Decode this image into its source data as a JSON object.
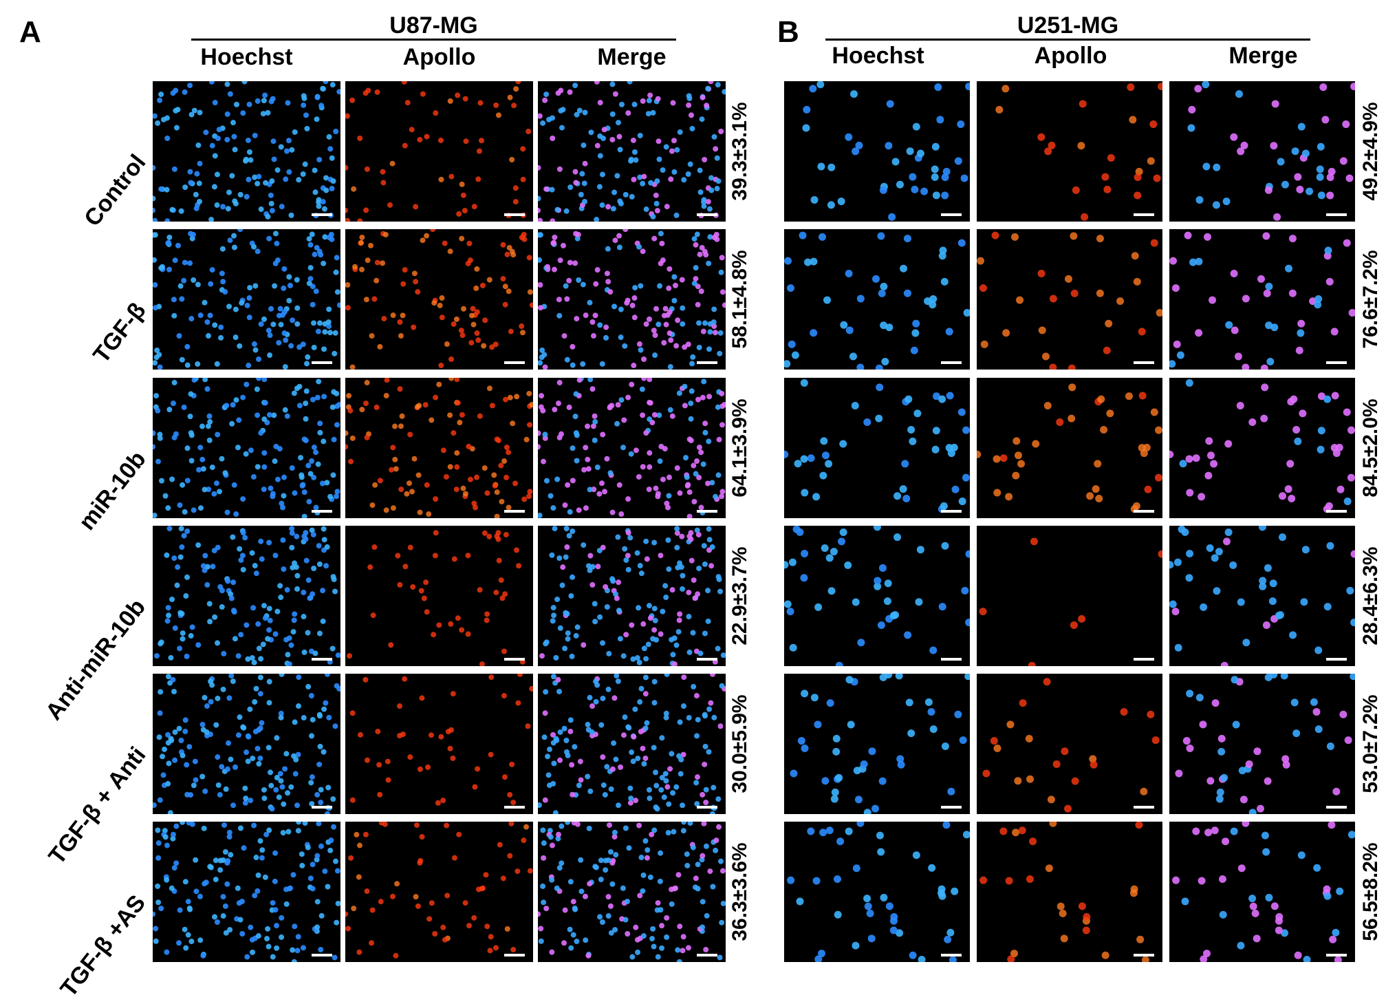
{
  "panel_a": {
    "letter": "A",
    "cell_line": "U87-MG",
    "columns": [
      "Hoechst",
      "Apollo",
      "Merge"
    ],
    "percentages": [
      "39.3±3.1%",
      "58.1±4.8%",
      "64.1±3.9%",
      "22.9±3.7%",
      "30.0±5.9%",
      "36.3±3.6%"
    ]
  },
  "panel_b": {
    "letter": "B",
    "cell_line": "U251-MG",
    "columns": [
      "Hoechst",
      "Apollo",
      "Merge"
    ],
    "percentages": [
      "49.2±4.9%",
      "76.6±7.2%",
      "84.5±2.0%",
      "28.4±6.3%",
      "53.0±7.2%",
      "56.5±8.2%"
    ]
  },
  "rows": [
    "Control",
    "TGF-β",
    "miR-10b",
    "Anti-miR-10b",
    "TGF-β + Anti",
    "TGF-β +AS"
  ],
  "colors": {
    "hoechst": "#2a8cff",
    "apollo": "#ff3a10",
    "merge": "#e070ff"
  }
}
